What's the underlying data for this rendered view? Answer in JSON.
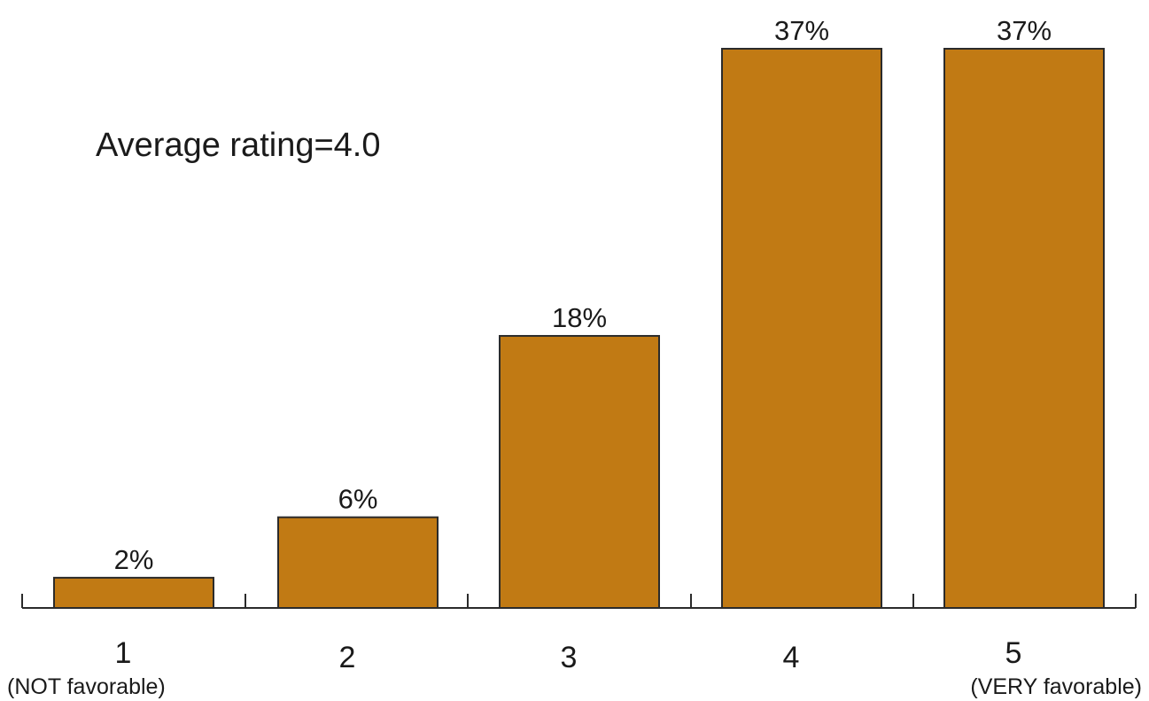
{
  "chart_data": {
    "type": "bar",
    "categories": [
      "1",
      "2",
      "3",
      "4",
      "5"
    ],
    "category_sublabels": [
      "(NOT favorable)",
      "",
      "",
      "",
      "(VERY favorable)"
    ],
    "values": [
      2,
      6,
      18,
      37,
      37
    ],
    "value_labels": [
      "2%",
      "6%",
      "18%",
      "37%",
      "37%"
    ],
    "annotation": "Average rating=4.0",
    "title": "",
    "xlabel": "",
    "ylabel": "",
    "ylim": [
      0,
      37
    ],
    "grid": false,
    "bar_color": "#C17A14"
  }
}
